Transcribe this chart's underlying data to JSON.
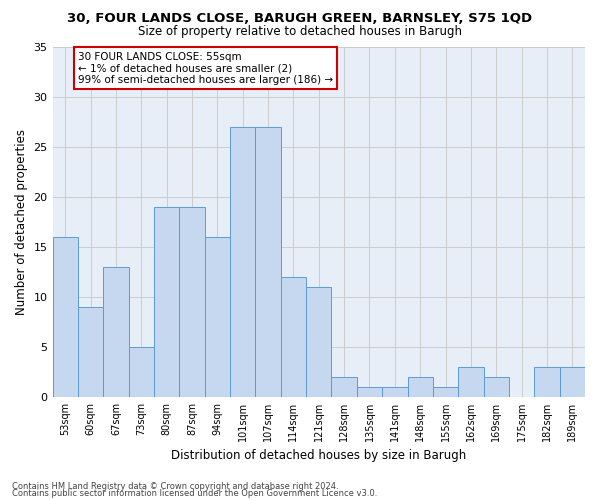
{
  "title_line1": "30, FOUR LANDS CLOSE, BARUGH GREEN, BARNSLEY, S75 1QD",
  "title_line2": "Size of property relative to detached houses in Barugh",
  "xlabel": "Distribution of detached houses by size in Barugh",
  "ylabel": "Number of detached properties",
  "categories": [
    "53sqm",
    "60sqm",
    "67sqm",
    "73sqm",
    "80sqm",
    "87sqm",
    "94sqm",
    "101sqm",
    "107sqm",
    "114sqm",
    "121sqm",
    "128sqm",
    "135sqm",
    "141sqm",
    "148sqm",
    "155sqm",
    "162sqm",
    "169sqm",
    "175sqm",
    "182sqm",
    "189sqm"
  ],
  "values": [
    16,
    9,
    13,
    5,
    19,
    19,
    16,
    27,
    27,
    12,
    11,
    2,
    1,
    1,
    2,
    1,
    3,
    2,
    0,
    3,
    3
  ],
  "bar_color": "#c5d8f0",
  "bar_edge_color": "#5b9bd5",
  "annotation_text": "30 FOUR LANDS CLOSE: 55sqm\n← 1% of detached houses are smaller (2)\n99% of semi-detached houses are larger (186) →",
  "annotation_box_color": "#ffffff",
  "annotation_box_edge": "#cc0000",
  "ylim": [
    0,
    35
  ],
  "yticks": [
    0,
    5,
    10,
    15,
    20,
    25,
    30,
    35
  ],
  "grid_color": "#cccccc",
  "bg_color": "#e8eef7",
  "footer_line1": "Contains HM Land Registry data © Crown copyright and database right 2024.",
  "footer_line2": "Contains public sector information licensed under the Open Government Licence v3.0."
}
